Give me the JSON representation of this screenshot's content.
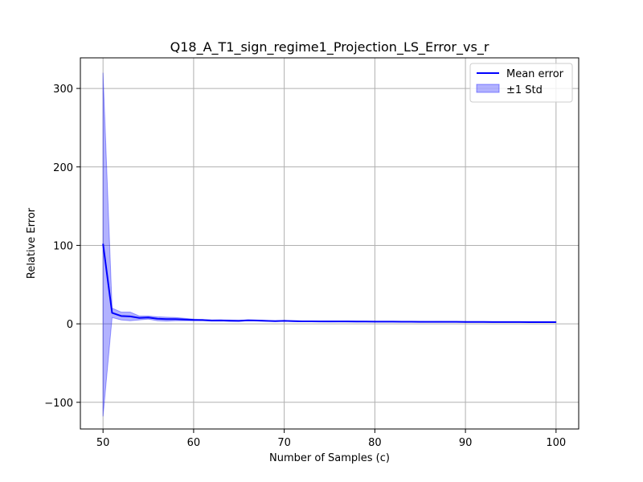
{
  "chart_data": {
    "type": "line",
    "title": "Q18_A_T1_sign_regime1_Projection_LS_Error_vs_r",
    "xlabel": "Number of Samples (c)",
    "ylabel": "Relative Error",
    "xlim": [
      47.5,
      102.5
    ],
    "ylim": [
      -134,
      339
    ],
    "xticks": [
      50,
      60,
      70,
      80,
      90,
      100
    ],
    "yticks": [
      -100,
      0,
      100,
      200,
      300
    ],
    "xtick_labels": [
      "50",
      "60",
      "70",
      "80",
      "90",
      "100"
    ],
    "ytick_labels": [
      "−100",
      "0",
      "100",
      "200",
      "300"
    ],
    "grid": true,
    "legend_placement": "top-right",
    "x": [
      50,
      51,
      52,
      53,
      54,
      55,
      56,
      57,
      58,
      59,
      60,
      61,
      62,
      63,
      64,
      65,
      66,
      67,
      68,
      69,
      70,
      71,
      72,
      73,
      74,
      75,
      76,
      77,
      78,
      79,
      80,
      81,
      82,
      83,
      84,
      85,
      86,
      87,
      88,
      89,
      90,
      91,
      92,
      93,
      94,
      95,
      96,
      97,
      98,
      99,
      100
    ],
    "series": [
      {
        "name": "Mean error",
        "color": "#0000ff",
        "values": [
          102,
          14,
          10,
          9.5,
          7.5,
          8,
          6.5,
          6,
          6,
          5.5,
          5,
          4.8,
          4.2,
          4.3,
          4,
          3.8,
          4.5,
          4.2,
          3.8,
          3.5,
          3.8,
          3.5,
          3.2,
          3.2,
          3.1,
          3.0,
          3.1,
          3.0,
          2.9,
          2.9,
          2.8,
          2.8,
          2.8,
          2.7,
          2.7,
          2.6,
          2.5,
          2.6,
          2.5,
          2.5,
          2.4,
          2.4,
          2.4,
          2.3,
          2.3,
          2.3,
          2.3,
          2.2,
          2.2,
          2.2,
          2.2
        ]
      }
    ],
    "band": {
      "name": "±1 Std",
      "color": "#0000ff",
      "opacity": 0.3,
      "upper": [
        320,
        20,
        15,
        15,
        10,
        10,
        9,
        8.5,
        8,
        7,
        6,
        5.5,
        5,
        5,
        4.8,
        4.5,
        5,
        4.8,
        4.2,
        4,
        4.3,
        4,
        3.6,
        3.6,
        3.5,
        3.4,
        3.5,
        3.4,
        3.3,
        3.2,
        3.1,
        3.1,
        3.1,
        3.0,
        3.0,
        2.9,
        2.8,
        2.9,
        2.8,
        2.8,
        2.7,
        2.7,
        2.7,
        2.6,
        2.6,
        2.6,
        2.6,
        2.5,
        2.5,
        2.5,
        2.5
      ],
      "lower": [
        -118,
        8,
        5,
        4,
        5,
        6,
        4,
        3.5,
        4,
        4,
        4,
        4.1,
        3.4,
        3.6,
        3.2,
        3.1,
        4,
        3.6,
        3.4,
        3,
        3.3,
        3,
        2.8,
        2.8,
        2.7,
        2.6,
        2.7,
        2.6,
        2.5,
        2.6,
        2.5,
        2.5,
        2.5,
        2.4,
        2.4,
        2.3,
        2.2,
        2.3,
        2.2,
        2.2,
        2.1,
        2.1,
        2.1,
        2.0,
        2.0,
        2.0,
        2.0,
        1.9,
        1.9,
        1.9,
        1.9
      ]
    }
  }
}
